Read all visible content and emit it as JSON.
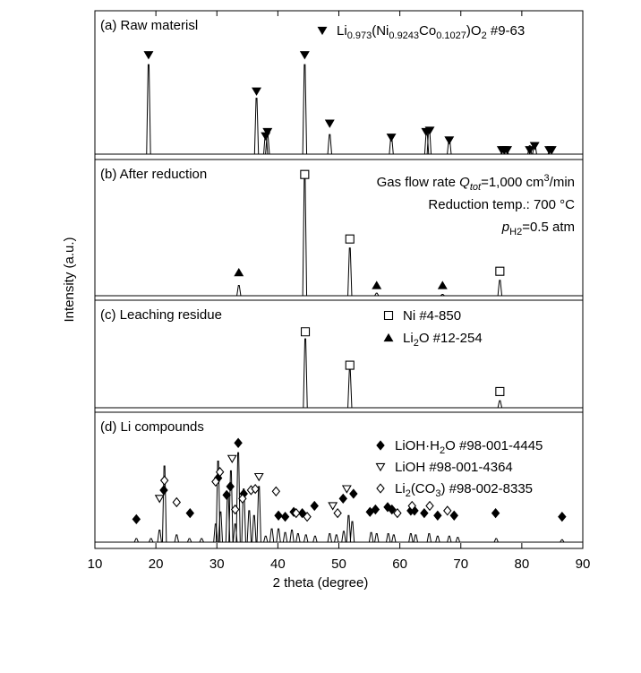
{
  "chart_data": {
    "type": "xrd-stack",
    "xlabel": "2 theta (degree)",
    "ylabel": "Intensity (a.u.)",
    "xlim": [
      10,
      90
    ],
    "xticks": [
      10,
      20,
      30,
      40,
      50,
      60,
      70,
      80,
      90
    ],
    "color": "#000000",
    "panels": [
      {
        "label": "(a) Raw materisl",
        "ylim": [
          0,
          100
        ],
        "peaks": {
          "x": [
            18.8,
            36.5,
            38.0,
            38.3,
            44.4,
            48.5,
            58.6,
            64.4,
            64.8,
            68.1,
            76.9,
            77.5,
            81.3,
            82.1,
            84.6
          ],
          "values": [
            64,
            40,
            15,
            14,
            64,
            14,
            13,
            17,
            19,
            11,
            3,
            3,
            6,
            8,
            2
          ]
        },
        "markers": [
          {
            "symbol": "triangle-down-filled",
            "x": [
              18.8,
              36.5,
              38.0,
              38.3,
              44.4,
              48.5,
              58.6,
              64.3,
              64.9,
              68.1,
              76.7,
              77.1,
              77.6,
              81.3,
              82.1,
              84.5,
              84.9
            ],
            "y": [
              71,
              45,
              13,
              16,
              71,
              22,
              12,
              16,
              17,
              10,
              3,
              3,
              3,
              3,
              6,
              3,
              3
            ]
          }
        ],
        "legend": [
          {
            "symbol": "triangle-down-filled",
            "parts": [
              {
                "text": "Li"
              },
              {
                "sub": "0.973"
              },
              {
                "text": "(Ni"
              },
              {
                "sub": "0.9243"
              },
              {
                "text": "Co"
              },
              {
                "sub": "0.1027"
              },
              {
                "text": ")O"
              },
              {
                "sub": "2"
              },
              {
                "text": " #9-63"
              }
            ]
          }
        ],
        "annotations": []
      },
      {
        "label": "(b) After reduction",
        "ylim": [
          0,
          100
        ],
        "peaks": {
          "x": [
            33.6,
            44.4,
            51.8,
            56.2,
            67.0,
            76.4
          ],
          "values": [
            8,
            92,
            37,
            2,
            1,
            12
          ]
        },
        "markers": [
          {
            "symbol": "square-open",
            "x": [
              44.4,
              51.8,
              76.4
            ],
            "y": [
              94,
              44,
              19
            ]
          },
          {
            "symbol": "triangle-up-filled",
            "x": [
              33.6,
              56.2,
              67.0
            ],
            "y": [
              18,
              8,
              8
            ]
          }
        ],
        "legend": [],
        "annotations": [
          [
            {
              "text": "Gas flow rate "
            },
            {
              "italic": "Q"
            },
            {
              "italic_sub": "tot"
            },
            {
              "text": "=1,000 cm"
            },
            {
              "sup": "3"
            },
            {
              "text": "/min"
            }
          ],
          [
            {
              "text": "Reduction temp.: 700 °C"
            }
          ],
          [
            {
              "italic": "p"
            },
            {
              "sub": "H2"
            },
            {
              "text": "=0.5 atm"
            }
          ]
        ]
      },
      {
        "label": "(c) Leaching residue",
        "ylim": [
          0,
          100
        ],
        "peaks": {
          "x": [
            44.5,
            51.8,
            76.4
          ],
          "values": [
            68,
            38,
            7
          ]
        },
        "markers": [
          {
            "symbol": "square-open",
            "x": [
              44.5,
              51.8,
              76.4
            ],
            "y": [
              75,
              42,
              16
            ]
          }
        ],
        "legend": [
          {
            "symbol": "square-open",
            "parts": [
              {
                "text": "Ni #4-850"
              }
            ]
          },
          {
            "symbol": "triangle-up-filled",
            "parts": [
              {
                "text": "Li"
              },
              {
                "sub": "2"
              },
              {
                "text": "O #12-254"
              }
            ]
          }
        ],
        "annotations": []
      },
      {
        "label": "(d) Li compounds",
        "ylim": [
          0,
          100
        ],
        "peaks": {
          "x": [
            16.8,
            19.2,
            20.6,
            21.4,
            23.4,
            25.5,
            27.5,
            29.8,
            30.2,
            30.6,
            31.8,
            32.3,
            33.0,
            33.5,
            34.4,
            35.3,
            36.1,
            36.9,
            38.0,
            39.0,
            40.1,
            41.2,
            42.3,
            43.3,
            44.6,
            46.1,
            48.5,
            49.6,
            50.8,
            51.6,
            52.2,
            55.3,
            56.2,
            58.1,
            59.0,
            61.8,
            62.6,
            64.8,
            66.2,
            68.1,
            69.5,
            75.8,
            86.6
          ],
          "values": [
            3,
            3,
            10,
            63,
            6,
            3,
            3,
            15,
            67,
            25,
            41,
            59,
            15,
            74,
            44,
            26,
            22,
            46,
            5,
            11,
            11,
            8,
            10,
            7,
            6,
            5,
            7,
            6,
            9,
            22,
            17,
            8,
            7,
            7,
            6,
            7,
            6,
            7,
            5,
            5,
            4,
            3,
            2
          ]
        },
        "markers": [
          {
            "symbol": "diamond-filled",
            "x": [
              16.8,
              21.3,
              25.6,
              30.2,
              31.6,
              32.2,
              33.5,
              34.4,
              40.1,
              41.2,
              42.6,
              44.0,
              46.0,
              50.7,
              52.4,
              55.1,
              56.0,
              58.0,
              58.7,
              61.8,
              62.4,
              64.0,
              66.2,
              68.9,
              75.7,
              86.6
            ],
            "y": [
              19,
              43,
              24,
              53,
              39,
              46,
              82,
              40,
              22,
              21,
              25,
              24,
              30,
              36,
              40,
              25,
              27,
              29,
              27,
              26,
              26,
              24,
              22,
              22,
              24,
              21
            ]
          },
          {
            "symbol": "diamond-open",
            "x": [
              21.4,
              23.4,
              29.8,
              30.5,
              33.0,
              34.2,
              35.6,
              36.3,
              39.7,
              43.0,
              44.8,
              49.8,
              59.6,
              62.0,
              64.9,
              67.8
            ],
            "y": [
              51,
              33,
              50,
              58,
              27,
              36,
              43,
              44,
              42,
              24,
              21,
              24,
              24,
              30,
              30,
              26
            ]
          },
          {
            "symbol": "triangle-down-open",
            "x": [
              20.6,
              32.5,
              36.9,
              49.0,
              51.3
            ],
            "y": [
              36,
              69,
              54,
              30,
              44
            ]
          }
        ],
        "legend": [
          {
            "symbol": "diamond-filled",
            "parts": [
              {
                "text": "LiOH·H"
              },
              {
                "sub": "2"
              },
              {
                "text": "O  #98-001-4445"
              }
            ]
          },
          {
            "symbol": "triangle-down-open",
            "parts": [
              {
                "text": "LiOH  #98-001-4364"
              }
            ]
          },
          {
            "symbol": "diamond-open",
            "parts": [
              {
                "text": "Li"
              },
              {
                "sub": "2"
              },
              {
                "text": "(CO"
              },
              {
                "sub": "3"
              },
              {
                "text": ")  #98-002-8335"
              }
            ]
          }
        ],
        "annotations": []
      }
    ]
  }
}
